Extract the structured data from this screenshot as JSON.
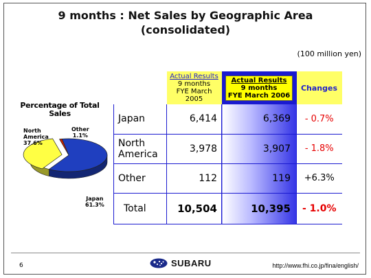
{
  "slide": {
    "title_line1": "9 months : Net Sales by Geographic Area",
    "title_line2": "(consolidated)",
    "unit": "(100 million yen)",
    "page_number": "6",
    "logo_text": "SUBARU",
    "url": "http://www.fhi.co.jp/fina/english/"
  },
  "pie": {
    "title_line1": "Percentage of Total",
    "title_line2": "Sales",
    "labels": [
      {
        "name": "Japan",
        "pct": "61.3%"
      },
      {
        "name_line1": "North",
        "name_line2": "America",
        "pct": "37.6%"
      },
      {
        "name": "Other",
        "pct": "1.1%"
      }
    ],
    "colors": {
      "japan": "#1f3fbf",
      "north_america": "#ffff44",
      "other": "#cc2200"
    }
  },
  "table": {
    "header": {
      "col2005_line1": "Actual Results",
      "col2005_line2": "9 months",
      "col2005_line3": "FYE March 2005",
      "col2006_line1": "Actual Results",
      "col2006_line2": "9 months",
      "col2006_line3": "FYE March 2006",
      "changes": "Changes"
    },
    "rows": [
      {
        "label": "Japan",
        "v2005": "6,414",
        "v2006": "6,369",
        "change": "- 0.7%"
      },
      {
        "label_line1": "North",
        "label_line2": "America",
        "v2005": "3,978",
        "v2006": "3,907",
        "change": "- 1.8%"
      },
      {
        "label": "Other",
        "v2005": "112",
        "v2006": "119",
        "change": "+6.3%"
      }
    ],
    "total": {
      "label": "Total",
      "v2005": "10,504",
      "v2006": "10,395",
      "change": "- 1.0%"
    }
  },
  "chart_data": {
    "type": "pie",
    "title": "Percentage of Total Sales",
    "categories": [
      "Japan",
      "North America",
      "Other"
    ],
    "values": [
      61.3,
      37.6,
      1.1
    ],
    "legend": "none"
  }
}
